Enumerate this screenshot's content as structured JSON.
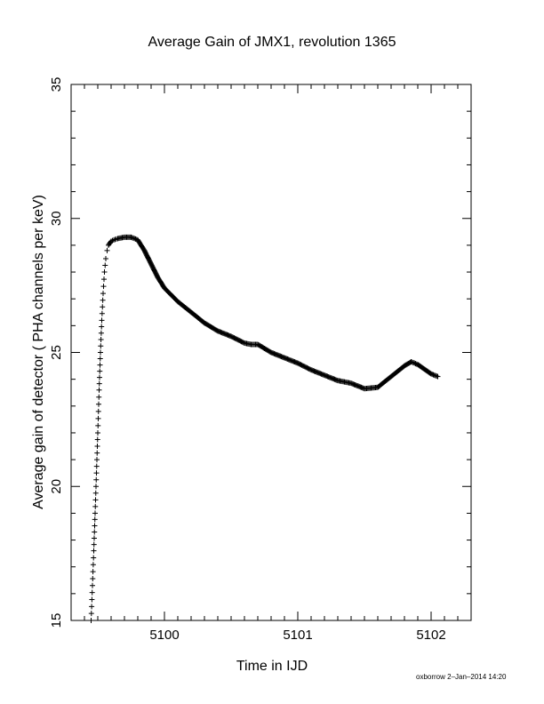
{
  "chart_data": {
    "type": "scatter",
    "title": "Average Gain of JMX1, revolution 1365",
    "xlabel": "Time in IJD",
    "ylabel": "Average gain of detector ( PHA channels per keV)",
    "xlim": [
      5099.3,
      5102.3
    ],
    "ylim": [
      15,
      35
    ],
    "x_ticks": [
      5100,
      5101,
      5102
    ],
    "x_tick_labels": [
      "5100",
      "5101",
      "5102"
    ],
    "y_ticks": [
      15,
      20,
      25,
      30,
      35
    ],
    "y_tick_labels": [
      "15",
      "20",
      "25",
      "30",
      "35"
    ],
    "marker": "plus",
    "marker_color": "#000000",
    "grid": false,
    "legend": "none",
    "series": [
      {
        "x": [
          5099.45,
          5099.46,
          5099.47,
          5099.48,
          5099.49,
          5099.5,
          5099.51,
          5099.52,
          5099.53,
          5099.54,
          5099.55,
          5099.56,
          5099.57,
          5099.58,
          5099.6,
          5099.62,
          5099.65,
          5099.7,
          5099.75,
          5099.8,
          5099.85,
          5099.9,
          5099.95,
          5100.0,
          5100.1,
          5100.2,
          5100.3,
          5100.4,
          5100.5,
          5100.6,
          5100.65,
          5100.7,
          5100.8,
          5100.9,
          5101.0,
          5101.1,
          5101.2,
          5101.3,
          5101.4,
          5101.5,
          5101.6,
          5101.7,
          5101.8,
          5101.85,
          5101.9,
          5102.0,
          5102.05
        ],
        "y": [
          15.0,
          16.3,
          17.6,
          19.0,
          20.5,
          22.0,
          23.6,
          25.0,
          26.2,
          27.2,
          28.0,
          28.5,
          28.8,
          29.0,
          29.15,
          29.2,
          29.25,
          29.3,
          29.3,
          29.2,
          28.8,
          28.3,
          27.8,
          27.4,
          26.9,
          26.5,
          26.1,
          25.8,
          25.6,
          25.35,
          25.3,
          25.3,
          25.0,
          24.8,
          24.6,
          24.35,
          24.15,
          23.95,
          23.85,
          23.65,
          23.7,
          24.1,
          24.5,
          24.65,
          24.55,
          24.2,
          24.1
        ]
      }
    ]
  },
  "footer_stamp": "oxborrow  2–Jan–2014 14:20"
}
